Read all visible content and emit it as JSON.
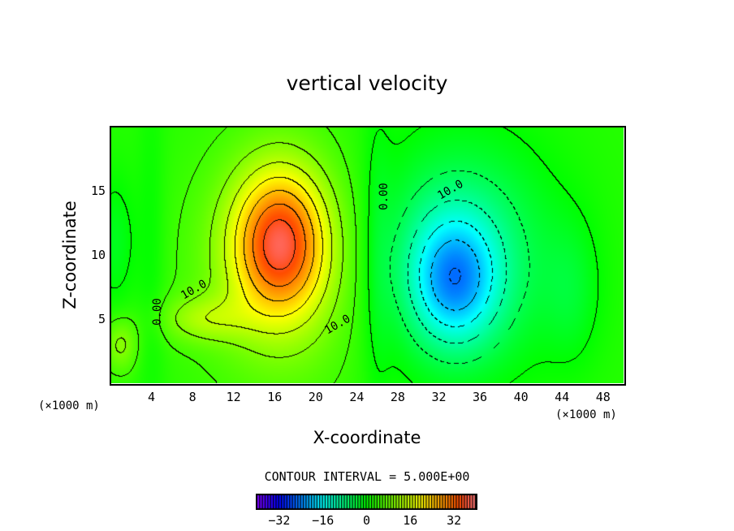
{
  "chart_data": {
    "type": "heatmap",
    "subtype": "filled contour",
    "title": "vertical velocity",
    "xlabel": "X-coordinate",
    "ylabel": "Z-coordinate",
    "x_unit": "(×1000 m)",
    "y_unit": "(×1000 m)",
    "xlim": [
      0,
      50
    ],
    "ylim": [
      0,
      20
    ],
    "x_ticks": [
      "4",
      "8",
      "12",
      "16",
      "20",
      "24",
      "28",
      "32",
      "36",
      "40",
      "44",
      "48"
    ],
    "y_ticks": [
      "5",
      "10",
      "15"
    ],
    "contour_interval_text": "CONTOUR INTERVAL = 5.000E+00",
    "contour_interval": 5,
    "negative_contours": "dashed",
    "contour_labels": [
      "0.00",
      "10.0",
      "10.0",
      "0.00",
      "10.0"
    ],
    "colorbar": {
      "range": [
        -40,
        40
      ],
      "ticks": [
        "-32",
        "-16",
        "0",
        "16",
        "32"
      ],
      "colormap": "rainbow purple-blue-cyan-green-yellow-red-pink"
    },
    "features": [
      {
        "kind": "updraft maximum",
        "x": 16.5,
        "z": 11,
        "value": 30
      },
      {
        "kind": "downdraft minimum",
        "x": 33.5,
        "z": 8,
        "value": -22
      },
      {
        "kind": "weak updraft",
        "x": 1,
        "z": 3,
        "value": 10
      }
    ]
  }
}
